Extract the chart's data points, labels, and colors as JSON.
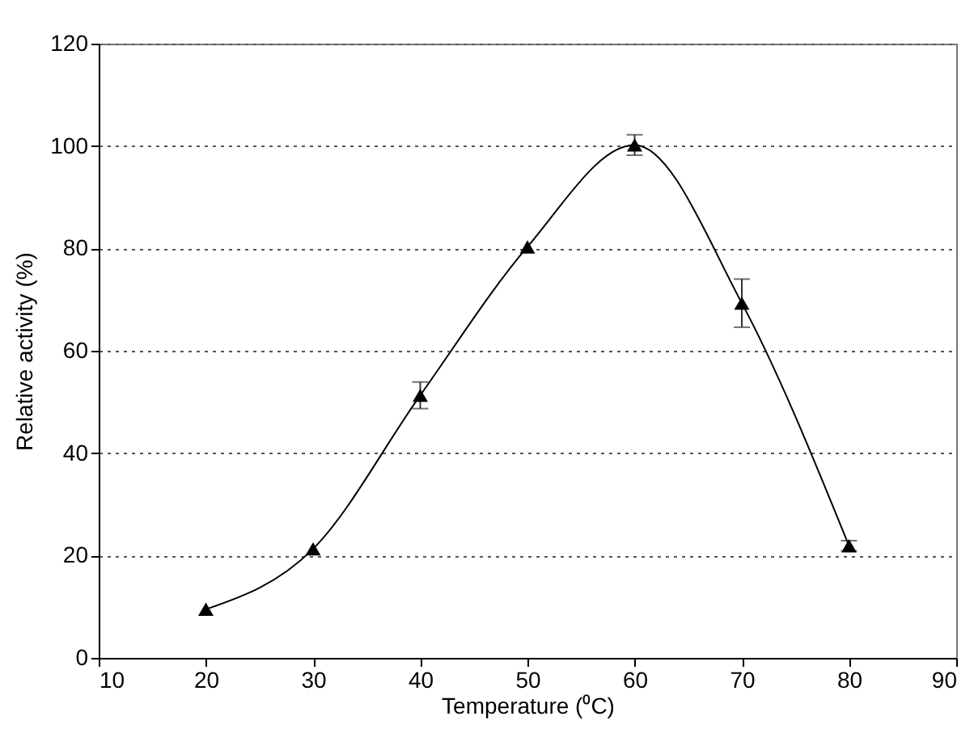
{
  "chart_data": {
    "type": "line",
    "xlabel": "Temperature (⁰C)",
    "ylabel": "Relative activity (%)",
    "x": [
      20,
      30,
      40,
      50,
      60,
      70,
      80
    ],
    "series": [
      {
        "color": "#000000",
        "values": [
          9.5,
          21.3,
          51.3,
          80.3,
          100.2,
          69.3,
          21.9
        ],
        "errors": [
          null,
          null,
          2.6,
          null,
          2,
          4.7,
          1
        ]
      }
    ],
    "xlim": [
      10,
      90
    ],
    "xticks": [
      10,
      20,
      30,
      40,
      50,
      60,
      70,
      80,
      90
    ],
    "ylim": [
      0,
      120
    ],
    "yticks": [
      0,
      20,
      40,
      60,
      80,
      100,
      120
    ],
    "grid": "y",
    "marker": "triangle",
    "line_style": "solid"
  }
}
